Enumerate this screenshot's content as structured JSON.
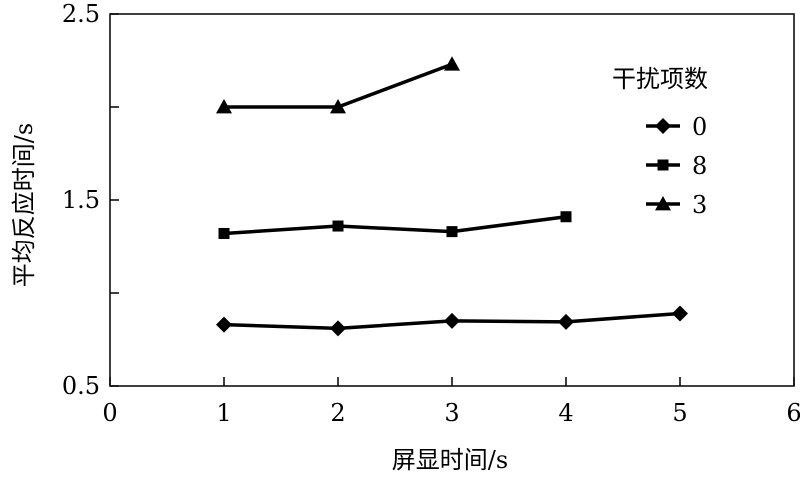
{
  "chart_data": {
    "type": "line",
    "xlabel": "屏显时间/s",
    "ylabel": "平均反应时间/s",
    "xlim": [
      0,
      6
    ],
    "ylim": [
      0.5,
      2.5
    ],
    "x_ticks": [
      0,
      1,
      2,
      3,
      4,
      5,
      6
    ],
    "x_tick_labels": [
      "0",
      "1",
      "2",
      "3",
      "4",
      "5",
      "6"
    ],
    "y_ticks": [
      0.5,
      1.0,
      1.5,
      2.0,
      2.5
    ],
    "y_tick_labels": [
      "0.5",
      "",
      "1.5",
      "",
      "2.5"
    ],
    "grid": false,
    "legend": {
      "title": "干扰项数",
      "placement": "top-right"
    },
    "series": [
      {
        "name": "0",
        "marker": "diamond",
        "x": [
          1,
          2,
          3,
          4,
          5
        ],
        "y": [
          0.83,
          0.81,
          0.85,
          0.845,
          0.89
        ]
      },
      {
        "name": "8",
        "marker": "square",
        "x": [
          1,
          2,
          3,
          4
        ],
        "y": [
          1.32,
          1.36,
          1.33,
          1.41
        ]
      },
      {
        "name": "3",
        "marker": "triangle",
        "x": [
          1,
          2,
          3
        ],
        "y": [
          2.0,
          2.0,
          2.23
        ]
      }
    ]
  }
}
